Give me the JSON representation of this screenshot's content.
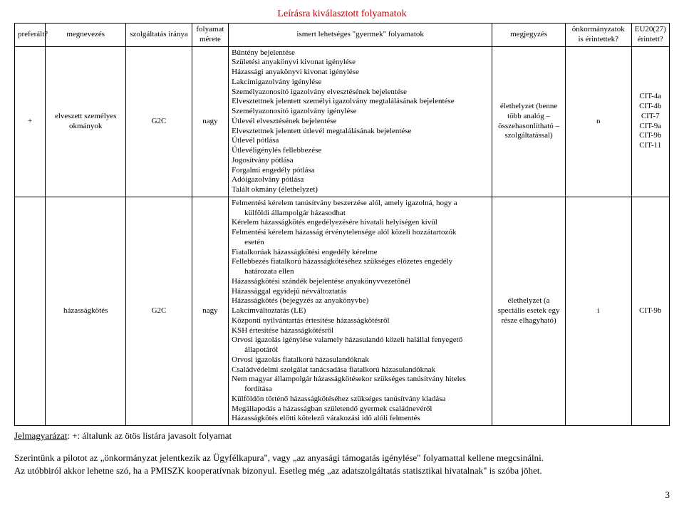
{
  "title": "Leírásra kiválasztott folyamatok",
  "headers": {
    "pref": "preferált?",
    "name": "megnevezés",
    "dir": "szolgáltatás iránya",
    "size": "folyamat mérete",
    "proc": "ismert lehetséges \"gyermek\" folyamatok",
    "note": "megjegyzés",
    "onk": "önkormányzatok is érintettek?",
    "eu": "EU20(27) érintett?"
  },
  "rows": [
    {
      "pref": "+",
      "name": "elveszett személyes okmányok",
      "dir": "G2C",
      "size": "nagy",
      "proc": "Bűntény bejelentése\nSzületési anyakönyvi kivonat igénylése\nHázassági anyakönyvi kivonat igénylése\nLakcímigazolvány igénylése\nSzemélyazonosító igazolvány elvesztésének bejelentése\nElvesztettnek jelentett személyi igazolvány megtalálásának bejelentése\nSzemélyazonosító igazolvány igénylése\nÚtlevél elvesztésének bejelentése\nElvesztettnek jelentett útlevél megtalálásának bejelentése\nÚtlevél pótlása\nÚtlevéligénylés fellebbezése\nJogosítvány pótlása\nForgalmi engedély pótlása\nAdóigazolvány pótlása\nTalált okmány (élethelyzet)",
      "note": "élethelyzet (benne több analóg – összehasonlítható – szolgáltatással)",
      "onk": "n",
      "eu": "CIT-4a\nCIT-4b\nCIT-7\nCIT-9a\nCIT-9b\nCIT-11"
    },
    {
      "pref": "",
      "name": "házasságkötés",
      "dir": "G2C",
      "size": "nagy",
      "proc_html": "Felmentési kérelem tanúsítvány beszerzése alól, amely igazolná, hogy a<span class=\"indent\">külföldi állampolgár házasodhat</span>Kérelem házasságkötés engedélyezésére hivatali helyiségen kívül\nFelmentési kérelem házasság érvénytelensége alól közeli hozzátartozók<span class=\"indent\">esetén</span>Fiatalkorúak házasságkötési engedély kérelme\nFellebbezés fiatalkorú házasságkötéséhez szükséges előzetes engedély<span class=\"indent\">határozata ellen</span>Házasságkötési szándék bejelentése anyakönyvvezetőnél\nHázassággal egyidejű névváltoztatás\nHázasságkötés (bejegyzés az anyakönyvbe)\nLakcímváltoztatás (LE)\nKözponti nyilvántartás értesítése házasságkötésről\nKSH értesítése házasságkötésről\nOrvosi igazolás igénylése valamely házasulandó közeli halállal fenyegető<span class=\"indent\">állapotáról</span>Orvosi igazolás fiatalkorú házasulandóknak\nCsaládvédelmi szolgálat tanácsadása fiatalkorú házasulandóknak\nNem magyar állampolgár házasságkötésekor szükséges tanúsítvány hiteles<span class=\"indent\">fordítása</span>Külföldön történő házasságkötéséhez szükséges tanúsítvány kiadása\nMegállapodás a házasságban születendő gyermek családnevéről\nHázasságkötés előtti kötelező várakozási idő alóli felmentés",
      "note": "élethelyzet (a speciális esetek egy része elhagyható)",
      "onk": "i",
      "eu": "CIT-9b"
    }
  ],
  "legend_label": "Jelmagyarázat",
  "legend_text": ": +: általunk az ötös listára javasolt folyamat",
  "para1": "Szerintünk a pilotot az „önkormányzat jelentkezik az Ügyfélkapura\", vagy „az anyasági támogatás igénylése\" folyamattal kellene megcsinálni.",
  "para2": "Az utóbbiról akkor lehetne szó, ha a PMISZK kooperatívnak bizonyul. Esetleg még „az adatszolgáltatás statisztikai hivatalnak\" is szóba jöhet.",
  "pagenum": "3"
}
